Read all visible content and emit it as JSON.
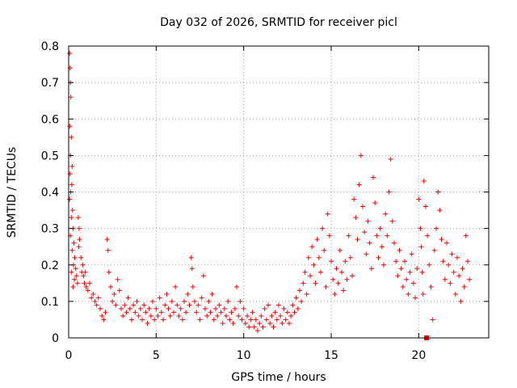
{
  "chart_data": {
    "type": "scatter",
    "title": "Day 032 of 2026, SRMTID for receiver picl",
    "xlabel": "GPS time / hours",
    "ylabel": "SRMTID / TECUs",
    "xlim": [
      0,
      24
    ],
    "ylim": [
      0,
      0.8
    ],
    "xticks": [
      0,
      5,
      10,
      15,
      20
    ],
    "xtick_labels": [
      "0",
      "5",
      "10",
      "15",
      "20"
    ],
    "yticks": [
      0,
      0.1,
      0.2,
      0.3,
      0.4,
      0.5,
      0.6,
      0.7,
      0.8
    ],
    "ytick_labels": [
      "0",
      "0.1",
      "0.2",
      "0.3",
      "0.4",
      "0.5",
      "0.6",
      "0.7",
      "0.8"
    ],
    "grid": true,
    "marker": "+",
    "color": "#ff0000",
    "series": [
      {
        "name": "SRMTID",
        "points": [
          [
            0.05,
            0.78
          ],
          [
            0.08,
            0.74
          ],
          [
            0.1,
            0.7
          ],
          [
            0.12,
            0.66
          ],
          [
            0.06,
            0.58
          ],
          [
            0.15,
            0.55
          ],
          [
            0.1,
            0.5
          ],
          [
            0.2,
            0.47
          ],
          [
            0.08,
            0.45
          ],
          [
            0.18,
            0.42
          ],
          [
            0.12,
            0.4
          ],
          [
            0.05,
            0.38
          ],
          [
            0.22,
            0.35
          ],
          [
            0.15,
            0.33
          ],
          [
            0.25,
            0.3
          ],
          [
            0.1,
            0.28
          ],
          [
            0.3,
            0.26
          ],
          [
            0.2,
            0.24
          ],
          [
            0.35,
            0.22
          ],
          [
            0.28,
            0.2
          ],
          [
            0.4,
            0.19
          ],
          [
            0.15,
            0.18
          ],
          [
            0.45,
            0.17
          ],
          [
            0.33,
            0.16
          ],
          [
            0.5,
            0.15
          ],
          [
            0.25,
            0.14
          ],
          [
            0.55,
            0.33
          ],
          [
            0.6,
            0.3
          ],
          [
            0.62,
            0.27
          ],
          [
            0.58,
            0.25
          ],
          [
            0.7,
            0.22
          ],
          [
            0.75,
            0.18
          ],
          [
            0.8,
            0.2
          ],
          [
            0.85,
            0.17
          ],
          [
            0.9,
            0.15
          ],
          [
            0.95,
            0.18
          ],
          [
            1.0,
            0.14
          ],
          [
            1.1,
            0.13
          ],
          [
            1.2,
            0.15
          ],
          [
            1.3,
            0.11
          ],
          [
            1.4,
            0.12
          ],
          [
            1.5,
            0.1
          ],
          [
            1.6,
            0.09
          ],
          [
            1.7,
            0.11
          ],
          [
            1.8,
            0.08
          ],
          [
            1.9,
            0.06
          ],
          [
            2.0,
            0.05
          ],
          [
            2.1,
            0.07
          ],
          [
            2.2,
            0.27
          ],
          [
            2.25,
            0.24
          ],
          [
            2.3,
            0.18
          ],
          [
            2.4,
            0.14
          ],
          [
            2.5,
            0.1
          ],
          [
            2.6,
            0.12
          ],
          [
            2.7,
            0.09
          ],
          [
            2.8,
            0.16
          ],
          [
            2.9,
            0.13
          ],
          [
            3.0,
            0.08
          ],
          [
            3.1,
            0.06
          ],
          [
            3.2,
            0.09
          ],
          [
            3.3,
            0.07
          ],
          [
            3.4,
            0.11
          ],
          [
            3.5,
            0.08
          ],
          [
            3.6,
            0.05
          ],
          [
            3.7,
            0.09
          ],
          [
            3.8,
            0.07
          ],
          [
            3.9,
            0.1
          ],
          [
            4.0,
            0.06
          ],
          [
            4.1,
            0.08
          ],
          [
            4.2,
            0.05
          ],
          [
            4.3,
            0.09
          ],
          [
            4.4,
            0.07
          ],
          [
            4.5,
            0.04
          ],
          [
            4.6,
            0.08
          ],
          [
            4.7,
            0.06
          ],
          [
            4.8,
            0.1
          ],
          [
            4.9,
            0.05
          ],
          [
            5.0,
            0.08
          ],
          [
            5.1,
            0.06
          ],
          [
            5.2,
            0.11
          ],
          [
            5.3,
            0.07
          ],
          [
            5.4,
            0.05
          ],
          [
            5.5,
            0.09
          ],
          [
            5.6,
            0.12
          ],
          [
            5.7,
            0.08
          ],
          [
            5.8,
            0.06
          ],
          [
            5.9,
            0.1
          ],
          [
            6.0,
            0.07
          ],
          [
            6.1,
            0.14
          ],
          [
            6.2,
            0.09
          ],
          [
            6.3,
            0.06
          ],
          [
            6.4,
            0.08
          ],
          [
            6.5,
            0.05
          ],
          [
            6.6,
            0.1
          ],
          [
            6.7,
            0.07
          ],
          [
            6.8,
            0.12
          ],
          [
            6.9,
            0.09
          ],
          [
            7.0,
            0.22
          ],
          [
            7.05,
            0.19
          ],
          [
            7.1,
            0.14
          ],
          [
            7.2,
            0.1
          ],
          [
            7.3,
            0.07
          ],
          [
            7.4,
            0.09
          ],
          [
            7.5,
            0.05
          ],
          [
            7.6,
            0.11
          ],
          [
            7.7,
            0.17
          ],
          [
            7.8,
            0.08
          ],
          [
            7.9,
            0.06
          ],
          [
            8.0,
            0.1
          ],
          [
            8.1,
            0.07
          ],
          [
            8.2,
            0.12
          ],
          [
            8.3,
            0.05
          ],
          [
            8.4,
            0.08
          ],
          [
            8.5,
            0.06
          ],
          [
            8.6,
            0.09
          ],
          [
            8.7,
            0.07
          ],
          [
            8.8,
            0.04
          ],
          [
            8.9,
            0.08
          ],
          [
            9.0,
            0.06
          ],
          [
            9.1,
            0.1
          ],
          [
            9.2,
            0.05
          ],
          [
            9.3,
            0.07
          ],
          [
            9.4,
            0.04
          ],
          [
            9.5,
            0.08
          ],
          [
            9.6,
            0.14
          ],
          [
            9.7,
            0.06
          ],
          [
            9.8,
            0.1
          ],
          [
            9.9,
            0.05
          ],
          [
            10.0,
            0.08
          ],
          [
            10.1,
            0.04
          ],
          [
            10.2,
            0.06
          ],
          [
            10.3,
            0.03
          ],
          [
            10.4,
            0.05
          ],
          [
            10.5,
            0.07
          ],
          [
            10.6,
            0.03
          ],
          [
            10.7,
            0.05
          ],
          [
            10.8,
            0.02
          ],
          [
            10.9,
            0.04
          ],
          [
            11.0,
            0.06
          ],
          [
            11.1,
            0.03
          ],
          [
            11.2,
            0.08
          ],
          [
            11.3,
            0.05
          ],
          [
            11.4,
            0.09
          ],
          [
            11.5,
            0.04
          ],
          [
            11.6,
            0.06
          ],
          [
            11.7,
            0.03
          ],
          [
            11.8,
            0.07
          ],
          [
            11.9,
            0.05
          ],
          [
            12.0,
            0.09
          ],
          [
            12.1,
            0.06
          ],
          [
            12.2,
            0.04
          ],
          [
            12.3,
            0.08
          ],
          [
            12.4,
            0.05
          ],
          [
            12.5,
            0.07
          ],
          [
            12.6,
            0.04
          ],
          [
            12.7,
            0.06
          ],
          [
            12.8,
            0.09
          ],
          [
            12.9,
            0.07
          ],
          [
            13.0,
            0.11
          ],
          [
            13.1,
            0.08
          ],
          [
            13.2,
            0.13
          ],
          [
            13.3,
            0.1
          ],
          [
            13.4,
            0.15
          ],
          [
            13.5,
            0.18
          ],
          [
            13.6,
            0.12
          ],
          [
            13.7,
            0.22
          ],
          [
            13.8,
            0.17
          ],
          [
            13.9,
            0.25
          ],
          [
            14.0,
            0.2
          ],
          [
            14.1,
            0.15
          ],
          [
            14.2,
            0.27
          ],
          [
            14.3,
            0.22
          ],
          [
            14.4,
            0.18
          ],
          [
            14.5,
            0.3
          ],
          [
            14.6,
            0.24
          ],
          [
            14.7,
            0.14
          ],
          [
            14.8,
            0.34
          ],
          [
            14.9,
            0.28
          ],
          [
            15.0,
            0.21
          ],
          [
            15.1,
            0.16
          ],
          [
            15.2,
            0.12
          ],
          [
            15.3,
            0.19
          ],
          [
            15.4,
            0.15
          ],
          [
            15.5,
            0.24
          ],
          [
            15.6,
            0.18
          ],
          [
            15.7,
            0.13
          ],
          [
            15.8,
            0.21
          ],
          [
            15.9,
            0.16
          ],
          [
            16.0,
            0.28
          ],
          [
            16.1,
            0.22
          ],
          [
            16.2,
            0.17
          ],
          [
            16.3,
            0.38
          ],
          [
            16.4,
            0.33
          ],
          [
            16.5,
            0.27
          ],
          [
            16.6,
            0.42
          ],
          [
            16.7,
            0.5
          ],
          [
            16.8,
            0.36
          ],
          [
            16.9,
            0.29
          ],
          [
            17.0,
            0.23
          ],
          [
            17.1,
            0.32
          ],
          [
            17.2,
            0.26
          ],
          [
            17.3,
            0.19
          ],
          [
            17.4,
            0.44
          ],
          [
            17.5,
            0.37
          ],
          [
            17.6,
            0.28
          ],
          [
            17.7,
            0.22
          ],
          [
            17.8,
            0.3
          ],
          [
            17.9,
            0.25
          ],
          [
            18.0,
            0.2
          ],
          [
            18.1,
            0.34
          ],
          [
            18.2,
            0.28
          ],
          [
            18.3,
            0.4
          ],
          [
            18.4,
            0.49
          ],
          [
            18.5,
            0.32
          ],
          [
            18.6,
            0.26
          ],
          [
            18.7,
            0.21
          ],
          [
            18.8,
            0.17
          ],
          [
            18.9,
            0.24
          ],
          [
            19.0,
            0.19
          ],
          [
            19.1,
            0.14
          ],
          [
            19.2,
            0.21
          ],
          [
            19.3,
            0.16
          ],
          [
            19.4,
            0.12
          ],
          [
            19.5,
            0.18
          ],
          [
            19.6,
            0.23
          ],
          [
            19.7,
            0.15
          ],
          [
            19.8,
            0.11
          ],
          [
            19.9,
            0.19
          ],
          [
            20.0,
            0.38
          ],
          [
            20.1,
            0.3
          ],
          [
            20.15,
            0.25
          ],
          [
            20.2,
            0.18
          ],
          [
            20.25,
            0.12
          ],
          [
            20.3,
            0.43
          ],
          [
            20.4,
            0.36
          ],
          [
            20.5,
            0.28
          ],
          [
            20.6,
            0.2
          ],
          [
            20.7,
            0.14
          ],
          [
            20.8,
            0.05
          ],
          [
            20.9,
            0.24
          ],
          [
            21.0,
            0.3
          ],
          [
            21.1,
            0.4
          ],
          [
            21.2,
            0.35
          ],
          [
            21.3,
            0.27
          ],
          [
            21.4,
            0.21
          ],
          [
            21.5,
            0.16
          ],
          [
            21.6,
            0.26
          ],
          [
            21.7,
            0.2
          ],
          [
            21.8,
            0.15
          ],
          [
            21.9,
            0.23
          ],
          [
            22.0,
            0.18
          ],
          [
            22.1,
            0.12
          ],
          [
            22.2,
            0.22
          ],
          [
            22.3,
            0.17
          ],
          [
            22.4,
            0.1
          ],
          [
            22.5,
            0.19
          ],
          [
            22.6,
            0.14
          ],
          [
            22.7,
            0.28
          ],
          [
            22.8,
            0.21
          ],
          [
            22.9,
            0.16
          ]
        ]
      }
    ],
    "special_marker": {
      "shape": "square",
      "x": 20.45,
      "y": 0.0
    }
  }
}
